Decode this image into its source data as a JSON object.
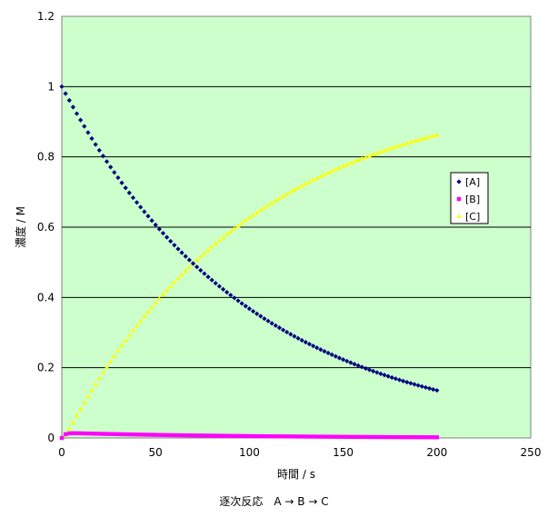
{
  "chart_data": {
    "type": "scatter",
    "xlabel": "時間 / s",
    "ylabel": "濃度 / M",
    "xlim": [
      0,
      250
    ],
    "ylim": [
      0,
      1.2
    ],
    "x_ticks": [
      "0",
      "50",
      "100",
      "150",
      "200",
      "250"
    ],
    "y_ticks": [
      "0",
      "0.2",
      "0.4",
      "0.6",
      "0.8",
      "1",
      "1.2"
    ],
    "grid": "horizontal",
    "plot_background": "#ccffcc",
    "legend_position": "right",
    "x_step": 2,
    "x_range": [
      0,
      200
    ],
    "series": [
      {
        "name": "[A]",
        "color": "#000080",
        "marker": "diamond",
        "rate_k": 0.01,
        "initial": 1.0
      },
      {
        "name": "[B]",
        "color": "#ff00ff",
        "marker": "square",
        "rate_k1": 0.01,
        "rate_k2": 0.7
      },
      {
        "name": "[C]",
        "color": "#ffff00",
        "marker": "triangle"
      }
    ]
  },
  "caption": "逐次反応　A → B → C"
}
